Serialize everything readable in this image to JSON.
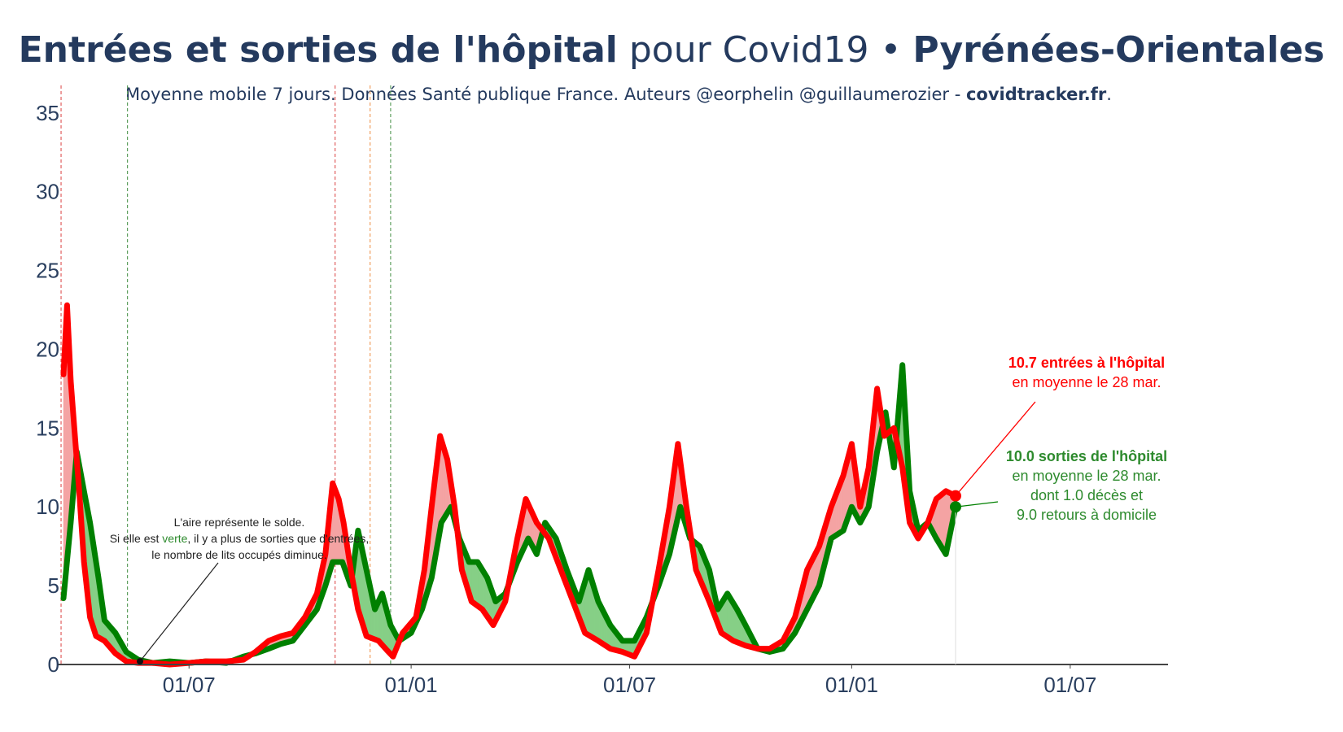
{
  "title": {
    "part1": "Entrées et sorties de l'hôpital",
    "part2": " pour Covid19 • ",
    "part3": "Pyrénées-Orientales"
  },
  "subtitle": {
    "text": "Moyenne mobile 7 jours. Données Santé publique France. Auteurs @eorphelin @guillaumerozier - ",
    "site": "covidtracker.fr",
    "end": "."
  },
  "colors": {
    "entries": "#ff0000",
    "exits": "#008000",
    "fill_entries": "#f4a3a3",
    "fill_exits": "#86cf86",
    "axis": "#444444",
    "ticks": "#2a3f5f"
  },
  "annotations": {
    "entries_line1": "10.7 entrées à l'hôpital",
    "entries_line2": "en moyenne le 28 mar.",
    "exits_line1": "10.0 sorties de l'hôpital",
    "exits_line2": "en moyenne le 28 mar.",
    "exits_line3": "dont 1.0 décès et",
    "exits_line4": "9.0 retours à domicile",
    "note_line1": "L'aire représente le solde.",
    "note_line2a": "Si elle est ",
    "note_line2b": "verte",
    "note_line2c": ", il y a plus de sorties que d'entrées,",
    "note_line3": "le nombre de lits occupés diminue."
  },
  "chart_data": {
    "type": "line",
    "xlabel": "",
    "ylabel": "",
    "ylim": [
      0,
      37
    ],
    "y_ticks": [
      0,
      5,
      10,
      15,
      20,
      25,
      30,
      35
    ],
    "x_ticks": [
      {
        "date": "2020-07-01",
        "label": "01/07"
      },
      {
        "date": "2021-01-01",
        "label": "01/01"
      },
      {
        "date": "2021-07-01",
        "label": "01/07"
      },
      {
        "date": "2022-01-01",
        "label": "01/01"
      },
      {
        "date": "2022-07-01",
        "label": "01/07"
      }
    ],
    "xlim": [
      "2020-03-19",
      "2022-09-20"
    ],
    "vertical_lines": [
      {
        "date": "2020-03-17",
        "color": "#e06060"
      },
      {
        "date": "2020-05-11",
        "color": "#60a060"
      },
      {
        "date": "2020-10-30",
        "color": "#e06060"
      },
      {
        "date": "2020-11-28",
        "color": "#f0a060"
      },
      {
        "date": "2020-12-15",
        "color": "#60a060"
      }
    ],
    "series": [
      {
        "key": "entries",
        "name": "Entrées à l'hôpital",
        "points": [
          [
            "2020-03-19",
            18.4
          ],
          [
            "2020-03-22",
            22.8
          ],
          [
            "2020-03-25",
            18.0
          ],
          [
            "2020-03-28",
            15.0
          ],
          [
            "2020-04-01",
            11.0
          ],
          [
            "2020-04-05",
            6.5
          ],
          [
            "2020-04-10",
            3.0
          ],
          [
            "2020-04-15",
            1.8
          ],
          [
            "2020-04-22",
            1.5
          ],
          [
            "2020-05-01",
            0.7
          ],
          [
            "2020-05-10",
            0.2
          ],
          [
            "2020-05-20",
            0.1
          ],
          [
            "2020-06-01",
            0.1
          ],
          [
            "2020-06-15",
            0.0
          ],
          [
            "2020-07-01",
            0.1
          ],
          [
            "2020-07-15",
            0.2
          ],
          [
            "2020-08-01",
            0.2
          ],
          [
            "2020-08-15",
            0.3
          ],
          [
            "2020-08-25",
            0.8
          ],
          [
            "2020-09-05",
            1.5
          ],
          [
            "2020-09-15",
            1.8
          ],
          [
            "2020-09-25",
            2.0
          ],
          [
            "2020-10-05",
            3.0
          ],
          [
            "2020-10-15",
            4.5
          ],
          [
            "2020-10-22",
            7.0
          ],
          [
            "2020-10-28",
            11.5
          ],
          [
            "2020-11-02",
            10.5
          ],
          [
            "2020-11-06",
            9.0
          ],
          [
            "2020-11-12",
            6.0
          ],
          [
            "2020-11-18",
            3.5
          ],
          [
            "2020-11-25",
            1.8
          ],
          [
            "2020-12-05",
            1.5
          ],
          [
            "2020-12-12",
            0.9
          ],
          [
            "2020-12-17",
            0.5
          ],
          [
            "2020-12-25",
            2.0
          ],
          [
            "2021-01-05",
            3.0
          ],
          [
            "2021-01-12",
            6.0
          ],
          [
            "2021-01-18",
            10.0
          ],
          [
            "2021-01-25",
            14.5
          ],
          [
            "2021-01-31",
            13.0
          ],
          [
            "2021-02-06",
            10.0
          ],
          [
            "2021-02-12",
            6.0
          ],
          [
            "2021-02-20",
            4.0
          ],
          [
            "2021-03-01",
            3.5
          ],
          [
            "2021-03-10",
            2.5
          ],
          [
            "2021-03-20",
            4.0
          ],
          [
            "2021-03-30",
            8.0
          ],
          [
            "2021-04-06",
            10.5
          ],
          [
            "2021-04-15",
            9.0
          ],
          [
            "2021-04-25",
            8.0
          ],
          [
            "2021-05-05",
            6.0
          ],
          [
            "2021-05-15",
            4.0
          ],
          [
            "2021-05-25",
            2.0
          ],
          [
            "2021-06-05",
            1.5
          ],
          [
            "2021-06-15",
            1.0
          ],
          [
            "2021-06-25",
            0.8
          ],
          [
            "2021-07-05",
            0.5
          ],
          [
            "2021-07-15",
            2.0
          ],
          [
            "2021-07-25",
            6.0
          ],
          [
            "2021-08-03",
            10.0
          ],
          [
            "2021-08-10",
            14.0
          ],
          [
            "2021-08-17",
            10.0
          ],
          [
            "2021-08-25",
            6.0
          ],
          [
            "2021-09-05",
            4.0
          ],
          [
            "2021-09-15",
            2.0
          ],
          [
            "2021-09-25",
            1.5
          ],
          [
            "2021-10-05",
            1.2
          ],
          [
            "2021-10-15",
            1.0
          ],
          [
            "2021-10-25",
            1.0
          ],
          [
            "2021-11-05",
            1.5
          ],
          [
            "2021-11-15",
            3.0
          ],
          [
            "2021-11-25",
            6.0
          ],
          [
            "2021-12-05",
            7.5
          ],
          [
            "2021-12-15",
            10.0
          ],
          [
            "2021-12-25",
            12.0
          ],
          [
            "2022-01-01",
            14.0
          ],
          [
            "2022-01-08",
            10.0
          ],
          [
            "2022-01-15",
            12.5
          ],
          [
            "2022-01-22",
            17.5
          ],
          [
            "2022-01-28",
            14.5
          ],
          [
            "2022-02-05",
            15.0
          ],
          [
            "2022-02-12",
            12.5
          ],
          [
            "2022-02-18",
            9.0
          ],
          [
            "2022-02-25",
            8.0
          ],
          [
            "2022-03-05",
            9.0
          ],
          [
            "2022-03-12",
            10.5
          ],
          [
            "2022-03-20",
            11.0
          ],
          [
            "2022-03-28",
            10.7
          ]
        ]
      },
      {
        "key": "exits",
        "name": "Sorties de l'hôpital",
        "points": [
          [
            "2020-03-19",
            4.2
          ],
          [
            "2020-03-25",
            9.0
          ],
          [
            "2020-03-30",
            13.5
          ],
          [
            "2020-04-05",
            11.0
          ],
          [
            "2020-04-10",
            9.0
          ],
          [
            "2020-04-17",
            5.5
          ],
          [
            "2020-04-22",
            2.8
          ],
          [
            "2020-05-01",
            2.0
          ],
          [
            "2020-05-10",
            0.8
          ],
          [
            "2020-05-20",
            0.3
          ],
          [
            "2020-06-01",
            0.1
          ],
          [
            "2020-06-15",
            0.2
          ],
          [
            "2020-07-01",
            0.1
          ],
          [
            "2020-07-15",
            0.2
          ],
          [
            "2020-08-01",
            0.1
          ],
          [
            "2020-08-15",
            0.5
          ],
          [
            "2020-08-25",
            0.7
          ],
          [
            "2020-09-05",
            1.0
          ],
          [
            "2020-09-15",
            1.3
          ],
          [
            "2020-09-25",
            1.5
          ],
          [
            "2020-10-05",
            2.5
          ],
          [
            "2020-10-15",
            3.5
          ],
          [
            "2020-10-22",
            5.0
          ],
          [
            "2020-10-28",
            6.5
          ],
          [
            "2020-11-05",
            6.5
          ],
          [
            "2020-11-12",
            5.0
          ],
          [
            "2020-11-18",
            8.5
          ],
          [
            "2020-11-25",
            6.0
          ],
          [
            "2020-12-02",
            3.5
          ],
          [
            "2020-12-08",
            4.5
          ],
          [
            "2020-12-15",
            2.5
          ],
          [
            "2020-12-22",
            1.5
          ],
          [
            "2021-01-01",
            2.0
          ],
          [
            "2021-01-10",
            3.5
          ],
          [
            "2021-01-18",
            5.5
          ],
          [
            "2021-01-26",
            9.0
          ],
          [
            "2021-02-03",
            10.0
          ],
          [
            "2021-02-10",
            8.0
          ],
          [
            "2021-02-18",
            6.5
          ],
          [
            "2021-02-25",
            6.5
          ],
          [
            "2021-03-05",
            5.5
          ],
          [
            "2021-03-12",
            4.0
          ],
          [
            "2021-03-20",
            4.5
          ],
          [
            "2021-03-30",
            6.5
          ],
          [
            "2021-04-08",
            8.0
          ],
          [
            "2021-04-15",
            7.0
          ],
          [
            "2021-04-22",
            9.0
          ],
          [
            "2021-05-01",
            8.0
          ],
          [
            "2021-05-10",
            6.0
          ],
          [
            "2021-05-20",
            4.0
          ],
          [
            "2021-05-28",
            6.0
          ],
          [
            "2021-06-05",
            4.0
          ],
          [
            "2021-06-15",
            2.5
          ],
          [
            "2021-06-25",
            1.5
          ],
          [
            "2021-07-05",
            1.5
          ],
          [
            "2021-07-15",
            3.0
          ],
          [
            "2021-07-25",
            5.0
          ],
          [
            "2021-08-03",
            7.0
          ],
          [
            "2021-08-12",
            10.0
          ],
          [
            "2021-08-20",
            8.0
          ],
          [
            "2021-08-28",
            7.5
          ],
          [
            "2021-09-05",
            6.0
          ],
          [
            "2021-09-12",
            3.5
          ],
          [
            "2021-09-20",
            4.5
          ],
          [
            "2021-09-28",
            3.5
          ],
          [
            "2021-10-05",
            2.5
          ],
          [
            "2021-10-15",
            1.0
          ],
          [
            "2021-10-25",
            0.8
          ],
          [
            "2021-11-05",
            1.0
          ],
          [
            "2021-11-15",
            2.0
          ],
          [
            "2021-11-25",
            3.5
          ],
          [
            "2021-12-05",
            5.0
          ],
          [
            "2021-12-15",
            8.0
          ],
          [
            "2021-12-25",
            8.5
          ],
          [
            "2022-01-01",
            10.0
          ],
          [
            "2022-01-08",
            9.0
          ],
          [
            "2022-01-15",
            10.0
          ],
          [
            "2022-01-22",
            13.5
          ],
          [
            "2022-01-29",
            16.0
          ],
          [
            "2022-02-05",
            12.5
          ],
          [
            "2022-02-12",
            19.0
          ],
          [
            "2022-02-18",
            11.0
          ],
          [
            "2022-02-25",
            8.5
          ],
          [
            "2022-03-05",
            9.0
          ],
          [
            "2022-03-12",
            8.0
          ],
          [
            "2022-03-20",
            7.0
          ],
          [
            "2022-03-28",
            10.0
          ]
        ]
      }
    ]
  }
}
